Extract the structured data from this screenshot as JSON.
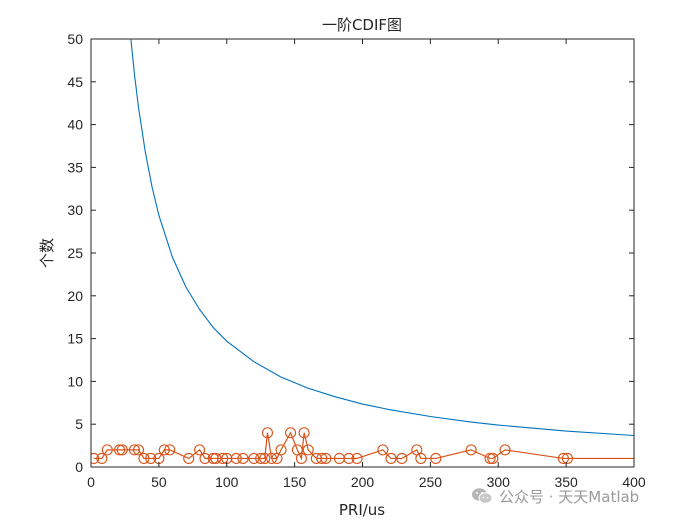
{
  "chart_data": {
    "type": "line",
    "title": "一阶CDIF图",
    "xlabel": "PRI/us",
    "ylabel": "个数",
    "xlim": [
      0,
      400
    ],
    "ylim": [
      0,
      50
    ],
    "xticks": [
      0,
      50,
      100,
      150,
      200,
      250,
      300,
      350,
      400
    ],
    "yticks": [
      0,
      5,
      10,
      15,
      20,
      25,
      30,
      35,
      40,
      45,
      50
    ],
    "grid": false,
    "legend": "none",
    "series": [
      {
        "style": "line",
        "color": "#0072BD",
        "formula": "y = 1470 / x",
        "x": [
          29.4,
          30,
          32,
          35,
          40,
          45,
          50,
          60,
          70,
          80,
          90,
          100,
          120,
          140,
          160,
          180,
          200,
          220,
          250,
          280,
          300,
          350,
          400
        ],
        "y": [
          50,
          49,
          45.9,
          42,
          36.8,
          32.7,
          29.4,
          24.5,
          21,
          18.4,
          16.3,
          14.7,
          12.3,
          10.5,
          9.2,
          8.2,
          7.35,
          6.7,
          5.9,
          5.25,
          4.9,
          4.2,
          3.68
        ]
      },
      {
        "style": "line-circle-markers",
        "color": "#D95319",
        "x": [
          2,
          8,
          12,
          21,
          23,
          32,
          35,
          39,
          44,
          50,
          54,
          58,
          72,
          80,
          84,
          90,
          92,
          97,
          100,
          107,
          112,
          120,
          125,
          128,
          130,
          133,
          137,
          140,
          147,
          152,
          155,
          157,
          160,
          166,
          170,
          173,
          183,
          190,
          196,
          215,
          221,
          229,
          240,
          243,
          254,
          280,
          294,
          296,
          305,
          348,
          351,
          400
        ],
        "y": [
          1,
          1,
          2,
          2,
          2,
          2,
          2,
          1,
          1,
          1,
          2,
          2,
          1,
          2,
          1,
          1,
          1,
          1,
          1,
          1,
          1,
          1,
          1,
          1,
          4,
          1,
          1,
          2,
          4,
          2,
          1,
          4,
          2,
          1,
          1,
          1,
          1,
          1,
          1,
          2,
          1,
          1,
          2,
          1,
          1,
          2,
          1,
          1,
          2,
          1,
          1,
          1
        ],
        "markers": [
          true,
          true,
          true,
          true,
          true,
          true,
          true,
          true,
          true,
          true,
          true,
          true,
          true,
          true,
          true,
          true,
          true,
          true,
          true,
          true,
          true,
          true,
          true,
          true,
          true,
          true,
          true,
          true,
          true,
          true,
          true,
          true,
          true,
          true,
          true,
          true,
          true,
          true,
          true,
          true,
          true,
          true,
          true,
          true,
          true,
          true,
          true,
          true,
          true,
          true,
          true,
          false
        ]
      }
    ]
  },
  "watermark": {
    "text": "公众号 · 天天Matlab",
    "icon": "wechat-icon"
  }
}
